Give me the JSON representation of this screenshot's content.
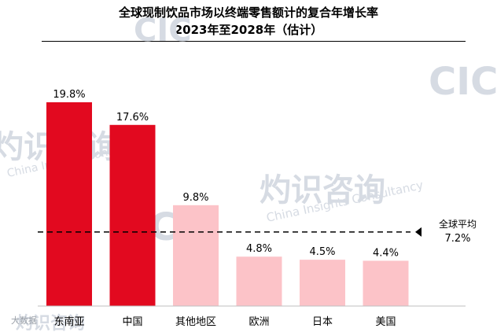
{
  "title_line1": "全球现制饮品市场以终端零售额计的复合年增长率",
  "title_line2": "2023年至2028年（估计）",
  "watermark": {
    "brand": "CIC",
    "cn": "灼识咨询",
    "en": "China Insights Consultancy",
    "corner": "大数据"
  },
  "colors": {
    "highlight": "#e2091f",
    "other": "#fcc3c8",
    "avg_line": "#000000"
  },
  "chart_data": {
    "type": "bar",
    "title": "全球现制饮品市场以终端零售额计的复合年增长率",
    "subtitle": "2023年至2028年（估计）",
    "categories": [
      "东南亚",
      "中国",
      "其他地区",
      "欧洲",
      "日本",
      "美国"
    ],
    "values": [
      19.8,
      17.6,
      9.8,
      4.8,
      4.5,
      4.4
    ],
    "value_labels": [
      "19.8%",
      "17.6%",
      "9.8%",
      "4.8%",
      "4.5%",
      "4.4%"
    ],
    "highlighted": [
      true,
      true,
      false,
      false,
      false,
      false
    ],
    "ylim": [
      0,
      21.5
    ],
    "reference_line": {
      "label": "全球平均",
      "value": 7.2,
      "value_label": "7.2%",
      "style": "dashed"
    },
    "grid": false
  }
}
